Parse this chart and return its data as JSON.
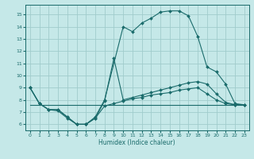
{
  "xlabel": "Humidex (Indice chaleur)",
  "xlim": [
    -0.5,
    23.5
  ],
  "ylim": [
    5.5,
    15.8
  ],
  "xticks": [
    0,
    1,
    2,
    3,
    4,
    5,
    6,
    7,
    8,
    9,
    10,
    11,
    12,
    13,
    14,
    15,
    16,
    17,
    18,
    19,
    20,
    21,
    22,
    23
  ],
  "yticks": [
    6,
    7,
    8,
    9,
    10,
    11,
    12,
    13,
    14,
    15
  ],
  "bg_color": "#c5e8e8",
  "line_color": "#1a6b6b",
  "grid_color": "#a0cccc",
  "lines": [
    {
      "x": [
        0,
        1,
        2,
        3,
        4,
        5,
        6,
        7,
        8,
        10,
        11,
        12,
        13,
        14,
        15,
        16,
        17,
        18,
        19,
        20,
        21,
        22,
        23
      ],
      "y": [
        9.0,
        7.7,
        7.2,
        7.2,
        6.6,
        6.0,
        6.0,
        6.6,
        8.0,
        14.0,
        13.6,
        14.3,
        14.7,
        15.2,
        15.3,
        15.3,
        14.9,
        13.2,
        10.7,
        10.3,
        9.3,
        7.7,
        7.6
      ],
      "marker": true
    },
    {
      "x": [
        0,
        1,
        2,
        3,
        4,
        5,
        6,
        7,
        8,
        9,
        10,
        11,
        12,
        13,
        14,
        15,
        16,
        17,
        18,
        19,
        20,
        21,
        22,
        23
      ],
      "y": [
        9.0,
        7.7,
        7.2,
        7.2,
        6.6,
        6.0,
        6.0,
        6.5,
        7.9,
        11.4,
        8.0,
        8.2,
        8.4,
        8.6,
        8.8,
        9.0,
        9.2,
        9.4,
        9.5,
        9.3,
        8.5,
        7.8,
        7.6,
        7.6
      ],
      "marker": true
    },
    {
      "x": [
        0,
        1,
        2,
        3,
        4,
        5,
        6,
        7,
        8,
        9,
        10,
        11,
        12,
        13,
        14,
        15,
        16,
        17,
        18,
        19,
        20,
        21,
        22,
        23
      ],
      "y": [
        9.0,
        7.7,
        7.2,
        7.1,
        6.5,
        6.0,
        6.0,
        6.5,
        7.5,
        7.7,
        7.9,
        8.1,
        8.2,
        8.4,
        8.5,
        8.6,
        8.8,
        8.9,
        9.0,
        8.5,
        8.0,
        7.7,
        7.6,
        7.6
      ],
      "marker": true
    },
    {
      "x": [
        0,
        23
      ],
      "y": [
        7.6,
        7.6
      ],
      "marker": false
    }
  ]
}
